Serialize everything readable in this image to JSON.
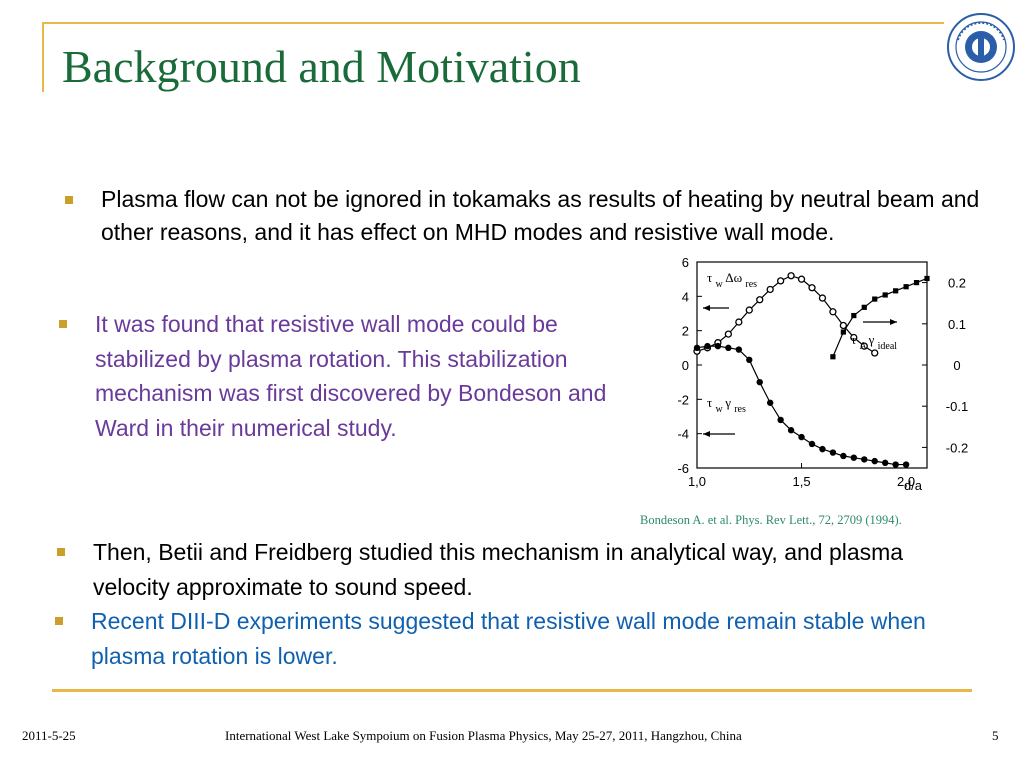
{
  "slide": {
    "title": "Background and Motivation",
    "bullets": [
      "Plasma flow can not be ignored in tokamaks as results of heating by neutral beam and other reasons, and it has effect on MHD modes and resistive wall mode.",
      "It was found that resistive wall mode could be stabilized by plasma rotation. This stabilization mechanism was first discovered by Bondeson and Ward in their numerical study.",
      "Then, Betii and Freidberg studied this mechanism in analytical way, and plasma velocity approximate to sound speed.",
      "Recent DIII-D experiments suggested that resistive wall mode remain stable when plasma rotation is lower."
    ],
    "reference": "Bondeson A. et al. Phys. Rev Lett., 72, 2709 (1994).",
    "footer": {
      "date": "2011-5-25",
      "conference": "International West Lake Sympoium on Fusion Plasma Physics, May 25-27, 2011, Hangzhou, China",
      "page": "5"
    },
    "colors": {
      "title": "#1a6b3a",
      "accent": "#e8b84a",
      "bullet2": "#6a3a9a",
      "bullet4": "#1060b0"
    },
    "logo": "university-seal"
  },
  "chart_data": {
    "type": "line",
    "xlabel": "d/a",
    "xlim": [
      1.0,
      2.1
    ],
    "ylim_left": [
      -6,
      6
    ],
    "ylim_right": [
      -0.25,
      0.25
    ],
    "x_ticks": [
      "1,0",
      "1,5",
      "2,0"
    ],
    "y_ticks_left": [
      "6",
      "4",
      "2",
      "0",
      "-2",
      "-4",
      "-6"
    ],
    "y_ticks_right": [
      "0.2",
      "0.1",
      "0",
      "-0.1",
      "-0.2"
    ],
    "series": [
      {
        "label_parts": [
          "τ",
          "w",
          "Δω",
          "res"
        ],
        "marker": "open-circle",
        "axis": "left",
        "x": [
          1.0,
          1.05,
          1.1,
          1.15,
          1.2,
          1.25,
          1.3,
          1.35,
          1.4,
          1.45,
          1.5,
          1.55,
          1.6,
          1.65,
          1.7,
          1.75,
          1.8,
          1.85
        ],
        "y": [
          0.8,
          1.0,
          1.3,
          1.8,
          2.5,
          3.2,
          3.8,
          4.4,
          4.9,
          5.2,
          5.0,
          4.5,
          3.9,
          3.1,
          2.3,
          1.6,
          1.1,
          0.7
        ]
      },
      {
        "label_parts": [
          "τ",
          "w",
          "γ",
          "res"
        ],
        "marker": "filled-circle",
        "axis": "left",
        "x": [
          1.0,
          1.05,
          1.1,
          1.15,
          1.2,
          1.25,
          1.3,
          1.35,
          1.4,
          1.45,
          1.5,
          1.55,
          1.6,
          1.65,
          1.7,
          1.75,
          1.8,
          1.85,
          1.9,
          1.95,
          2.0
        ],
        "y": [
          1.0,
          1.1,
          1.1,
          1.0,
          0.9,
          0.3,
          -1.0,
          -2.2,
          -3.2,
          -3.8,
          -4.2,
          -4.6,
          -4.9,
          -5.1,
          -5.3,
          -5.4,
          -5.5,
          -5.6,
          -5.7,
          -5.8,
          -5.8
        ]
      },
      {
        "label_parts": [
          "τ",
          "A",
          "γ",
          "ideal"
        ],
        "marker": "filled-square",
        "axis": "right",
        "x": [
          1.65,
          1.7,
          1.75,
          1.8,
          1.85,
          1.9,
          1.95,
          2.0,
          2.05,
          2.1
        ],
        "y": [
          0.02,
          0.08,
          0.12,
          0.14,
          0.16,
          0.17,
          0.18,
          0.19,
          0.2,
          0.21
        ]
      }
    ]
  }
}
